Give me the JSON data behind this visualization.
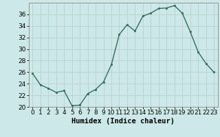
{
  "x": [
    0,
    1,
    2,
    3,
    4,
    5,
    6,
    7,
    8,
    9,
    10,
    11,
    12,
    13,
    14,
    15,
    16,
    17,
    18,
    19,
    20,
    21,
    22,
    23
  ],
  "y": [
    25.8,
    23.8,
    23.2,
    22.5,
    22.8,
    20.2,
    20.3,
    22.3,
    23.0,
    24.3,
    27.3,
    32.5,
    34.2,
    33.1,
    35.7,
    36.2,
    37.0,
    37.1,
    37.5,
    36.2,
    33.0,
    29.5,
    27.5,
    26.0
  ],
  "line_color": "#2e6b5e",
  "marker": "s",
  "markersize": 2.0,
  "linewidth": 1.0,
  "background_color": "#cde8e8",
  "grid_color": "#b8d0d0",
  "xlabel": "Humidex (Indice chaleur)",
  "xlim": [
    -0.5,
    23.5
  ],
  "ylim": [
    20,
    38
  ],
  "yticks": [
    20,
    22,
    24,
    26,
    28,
    30,
    32,
    34,
    36
  ],
  "xticks": [
    0,
    1,
    2,
    3,
    4,
    5,
    6,
    7,
    8,
    9,
    10,
    11,
    12,
    13,
    14,
    15,
    16,
    17,
    18,
    19,
    20,
    21,
    22,
    23
  ],
  "xlabel_fontsize": 7.5,
  "tick_fontsize": 6.5
}
